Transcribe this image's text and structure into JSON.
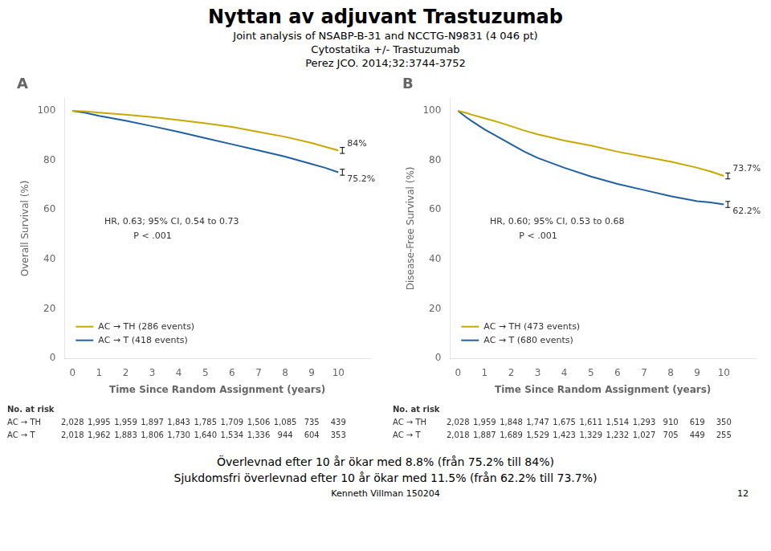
{
  "title": "Nyttan av adjuvant Trastuzumab",
  "subtitles": [
    "Joint analysis of NSABP-B-31 and NCCTG-N9831 (4 046 pt)",
    "Cytostatika +/- Trastuzumab",
    "Perez JCO. 2014;32:3744-3752"
  ],
  "footers": [
    "Överlevnad efter 10 år ökar med 8.8% (från 75.2% till 84%)",
    "Sjukdomsfri överlevnad efter 10 år ökar med 11.5% (från 62.2% till 73.7%)",
    "Kenneth Villman 150204",
    "12"
  ],
  "chart_data": [
    {
      "type": "line",
      "label": "A",
      "xlabel": "Time Since Random Assignment (years)",
      "ylabel": "Overall Survival (%)",
      "xlim": [
        -0.3,
        11.2
      ],
      "ylim": [
        0,
        105
      ],
      "xticks": [
        0,
        1,
        2,
        3,
        4,
        5,
        6,
        7,
        8,
        9,
        10
      ],
      "yticks": [
        0,
        20,
        40,
        60,
        80,
        100
      ],
      "grid": false,
      "legend": "lower left",
      "x": [
        0,
        0.5,
        1,
        2,
        3,
        4,
        5,
        6,
        7,
        8,
        9,
        9.5,
        10
      ],
      "series": [
        {
          "name": "AC → TH (286 events)",
          "color": "#c8a800",
          "values": [
            100,
            99.8,
            99.3,
            98.5,
            97.5,
            96.3,
            95.0,
            93.5,
            91.5,
            89.5,
            87.0,
            85.5,
            84.0
          ],
          "errors": [
            null,
            null,
            null,
            null,
            null,
            null,
            null,
            null,
            null,
            null,
            null,
            null,
            1.2
          ],
          "value_labels": [
            null,
            null,
            null,
            null,
            null,
            null,
            null,
            null,
            null,
            null,
            null,
            null,
            "84%"
          ]
        },
        {
          "name": "AC → T (418 events)",
          "color": "#2060a0",
          "values": [
            100,
            99.2,
            98.0,
            96.0,
            93.8,
            91.5,
            89.0,
            86.5,
            84.0,
            81.5,
            78.5,
            77.0,
            75.2
          ],
          "errors": [
            null,
            null,
            null,
            null,
            null,
            null,
            null,
            null,
            null,
            null,
            null,
            null,
            1.2
          ],
          "value_labels": [
            null,
            null,
            null,
            null,
            null,
            null,
            null,
            null,
            null,
            null,
            null,
            null,
            "75.2%"
          ]
        }
      ],
      "annotations": [
        {
          "text": "HR, 0.63; 95% CI, 0.54 to 0.73",
          "x": 1.2,
          "y": 57
        },
        {
          "text": "P < .001",
          "x": 2.3,
          "y": 51
        }
      ],
      "at_risk": {
        "title": "No. at risk",
        "x": [
          0,
          1,
          2,
          3,
          4,
          5,
          6,
          7,
          8,
          9,
          10
        ],
        "rows": [
          {
            "name": "AC → TH",
            "values": [
              2028,
              1995,
              1959,
              1897,
              1843,
              1785,
              1709,
              1506,
              1085,
              735,
              439
            ],
            "value_labels": [
              "2,028",
              "1,995",
              "1,959",
              "1,897",
              "1,843",
              "1,785",
              "1,709",
              "1,506",
              "1,085",
              "735",
              "439"
            ]
          },
          {
            "name": "AC → T",
            "values": [
              2018,
              1962,
              1883,
              1806,
              1730,
              1640,
              1534,
              1336,
              944,
              604,
              353
            ],
            "value_labels": [
              "2,018",
              "1,962",
              "1,883",
              "1,806",
              "1,730",
              "1,640",
              "1,534",
              "1,336",
              "944",
              "604",
              "353"
            ]
          }
        ]
      }
    },
    {
      "type": "line",
      "label": "B",
      "xlabel": "Time Since Random Assignment (years)",
      "ylabel": "Disease-Free Survival (%)",
      "xlim": [
        -0.3,
        11.2
      ],
      "ylim": [
        0,
        105
      ],
      "xticks": [
        0,
        1,
        2,
        3,
        4,
        5,
        6,
        7,
        8,
        9,
        10
      ],
      "yticks": [
        0,
        20,
        40,
        60,
        80,
        100
      ],
      "grid": false,
      "legend": "lower left",
      "x": [
        0,
        0.3,
        0.5,
        1,
        1.5,
        2,
        2.5,
        3,
        4,
        5,
        6,
        7,
        8,
        9,
        9.5,
        10
      ],
      "series": [
        {
          "name": "AC → TH (473 events)",
          "color": "#c8a800",
          "values": [
            100,
            99.2,
            98.5,
            97.0,
            95.5,
            93.8,
            92.0,
            90.5,
            88.0,
            86.0,
            83.5,
            81.5,
            79.5,
            77.0,
            75.5,
            73.7
          ],
          "errors": [
            null,
            null,
            null,
            null,
            null,
            null,
            null,
            null,
            null,
            null,
            null,
            null,
            null,
            null,
            null,
            1.2
          ],
          "value_labels": [
            null,
            null,
            null,
            null,
            null,
            null,
            null,
            null,
            null,
            null,
            null,
            null,
            null,
            null,
            null,
            "73.7%"
          ]
        },
        {
          "name": "AC → T (680 events)",
          "color": "#2060a0",
          "values": [
            100,
            97.5,
            96.0,
            92.5,
            89.5,
            86.5,
            83.5,
            81.0,
            77.0,
            73.5,
            70.5,
            68.0,
            65.5,
            63.5,
            63.0,
            62.2
          ],
          "errors": [
            null,
            null,
            null,
            null,
            null,
            null,
            null,
            null,
            null,
            null,
            null,
            null,
            null,
            null,
            null,
            1.2
          ],
          "value_labels": [
            null,
            null,
            null,
            null,
            null,
            null,
            null,
            null,
            null,
            null,
            null,
            null,
            null,
            null,
            null,
            "62.2%"
          ]
        }
      ],
      "annotations": [
        {
          "text": "HR, 0.60; 95% CI, 0.53 to 0.68",
          "x": 1.2,
          "y": 57
        },
        {
          "text": "P < .001",
          "x": 2.3,
          "y": 51
        }
      ],
      "at_risk": {
        "title": "No. at risk",
        "x": [
          0,
          1,
          2,
          3,
          4,
          5,
          6,
          7,
          8,
          9,
          10
        ],
        "rows": [
          {
            "name": "AC → TH",
            "values": [
              2028,
              1959,
              1848,
              1747,
              1675,
              1611,
              1514,
              1293,
              910,
              619,
              350
            ],
            "value_labels": [
              "2,028",
              "1,959",
              "1,848",
              "1,747",
              "1,675",
              "1,611",
              "1,514",
              "1,293",
              "910",
              "619",
              "350"
            ]
          },
          {
            "name": "AC → T",
            "values": [
              2018,
              1887,
              1689,
              1529,
              1423,
              1329,
              1232,
              1027,
              705,
              449,
              255
            ],
            "value_labels": [
              "2,018",
              "1,887",
              "1,689",
              "1,529",
              "1,423",
              "1,329",
              "1,232",
              "1,027",
              "705",
              "449",
              "255"
            ]
          }
        ]
      }
    }
  ]
}
